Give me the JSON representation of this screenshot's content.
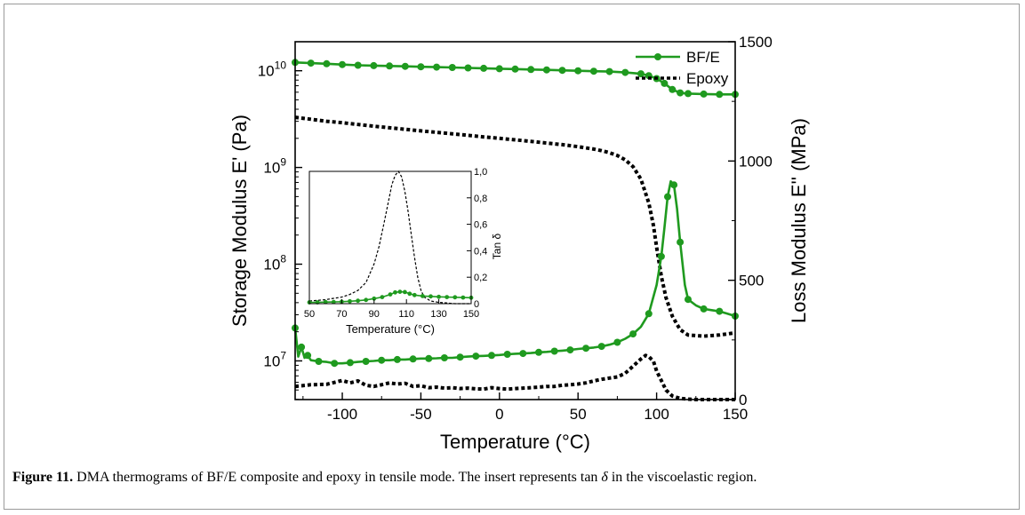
{
  "figure": {
    "caption_label": "Figure 11.",
    "caption_pre": " DMA thermograms of BF/E composite and epoxy in tensile mode. The insert represents tan ",
    "caption_symbol": "δ",
    "caption_post": " in the viscoelastic region."
  },
  "chart_data": [
    {
      "type": "line",
      "xlabel": "Temperature (°C)",
      "ylabel_left": "Storage Modulus E' (Pa)",
      "ylabel_right": "Loss Modulus E'' (MPa)",
      "xlim": [
        -130,
        150
      ],
      "xticks": [
        -100,
        -50,
        0,
        50,
        100,
        150
      ],
      "xtick_labels": [
        "-100",
        "-50",
        "0",
        "50",
        "100",
        "150"
      ],
      "ylim_left_log": [
        6.6,
        10.3
      ],
      "yticks_left_exp": [
        7,
        8,
        9,
        10
      ],
      "ytick_left_labels": [
        "10",
        "10",
        "10",
        "10"
      ],
      "ytick_left_sup": [
        "7",
        "8",
        "9",
        "10"
      ],
      "ylim_right": [
        0,
        1500
      ],
      "yticks_right": [
        0,
        500,
        1000,
        1500
      ],
      "ytick_right_labels": [
        "0",
        "500",
        "1000",
        "1500"
      ],
      "legend": {
        "position": "top-right",
        "entries": [
          "BF/E",
          "Epoxy"
        ]
      },
      "series": [
        {
          "name": "BF/E",
          "axis": "left",
          "style": "solid-markers",
          "color": "#1f9a1f",
          "x": [
            -130,
            -120,
            -110,
            -100,
            -90,
            -80,
            -70,
            -60,
            -50,
            -40,
            -30,
            -20,
            -10,
            0,
            10,
            20,
            30,
            40,
            50,
            60,
            70,
            80,
            90,
            95,
            100,
            105,
            110,
            115,
            120,
            130,
            140,
            150
          ],
          "y": [
            12200000000.0,
            12000000000.0,
            11800000000.0,
            11600000000.0,
            11400000000.0,
            11300000000.0,
            11200000000.0,
            11100000000.0,
            11000000000.0,
            10900000000.0,
            10800000000.0,
            10700000000.0,
            10600000000.0,
            10500000000.0,
            10400000000.0,
            10300000000.0,
            10200000000.0,
            10100000000.0,
            10000000000.0,
            9900000000.0,
            9800000000.0,
            9600000000.0,
            9300000000.0,
            8900000000.0,
            8300000000.0,
            7400000000.0,
            6400000000.0,
            5900000000.0,
            5800000000.0,
            5750000000.0,
            5700000000.0,
            5700000000.0
          ]
        },
        {
          "name": "Epoxy",
          "axis": "left",
          "style": "dotted",
          "color": "#000000",
          "x": [
            -130,
            -120,
            -110,
            -100,
            -90,
            -80,
            -70,
            -60,
            -50,
            -40,
            -30,
            -20,
            -10,
            0,
            10,
            20,
            30,
            40,
            50,
            60,
            65,
            70,
            75,
            80,
            85,
            90,
            95,
            98,
            100,
            103,
            106,
            110,
            115,
            120,
            130,
            140,
            150
          ],
          "y": [
            3300000000.0,
            3150000000.0,
            3000000000.0,
            2900000000.0,
            2780000000.0,
            2670000000.0,
            2570000000.0,
            2480000000.0,
            2390000000.0,
            2310000000.0,
            2230000000.0,
            2150000000.0,
            2070000000.0,
            2000000000.0,
            1930000000.0,
            1860000000.0,
            1790000000.0,
            1720000000.0,
            1640000000.0,
            1550000000.0,
            1490000000.0,
            1420000000.0,
            1330000000.0,
            1200000000.0,
            1020000000.0,
            760000000.0,
            430000000.0,
            250000000.0,
            150000000.0,
            75000000.0,
            45000000.0,
            29000000.0,
            21000000.0,
            18500000.0,
            18000000.0,
            18500000.0,
            19500000.0
          ]
        },
        {
          "name": "BF/E",
          "axis": "right",
          "style": "solid-markers",
          "color": "#1f9a1f",
          "x": [
            -130,
            -128,
            -126,
            -124,
            -122,
            -120,
            -115,
            -110,
            -105,
            -100,
            -95,
            -90,
            -85,
            -80,
            -75,
            -70,
            -65,
            -60,
            -55,
            -50,
            -45,
            -40,
            -35,
            -30,
            -25,
            -20,
            -15,
            -10,
            -5,
            0,
            5,
            10,
            15,
            20,
            25,
            30,
            35,
            40,
            45,
            50,
            55,
            60,
            65,
            70,
            75,
            80,
            85,
            90,
            95,
            100,
            103,
            105,
            107,
            109,
            111,
            113,
            115,
            118,
            120,
            125,
            130,
            135,
            140,
            145,
            150
          ],
          "y": [
            300,
            180,
            220,
            175,
            185,
            165,
            160,
            158,
            152,
            152,
            155,
            158,
            160,
            162,
            165,
            165,
            168,
            168,
            170,
            172,
            172,
            173,
            175,
            175,
            178,
            180,
            182,
            183,
            185,
            187,
            190,
            192,
            193,
            195,
            198,
            200,
            203,
            205,
            208,
            212,
            215,
            218,
            223,
            230,
            240,
            255,
            275,
            305,
            360,
            480,
            600,
            720,
            850,
            915,
            900,
            800,
            660,
            480,
            420,
            395,
            380,
            375,
            370,
            360,
            350
          ]
        },
        {
          "name": "Epoxy",
          "axis": "right",
          "style": "dotted",
          "color": "#000000",
          "x": [
            -130,
            -120,
            -110,
            -100,
            -95,
            -90,
            -85,
            -80,
            -75,
            -70,
            -65,
            -60,
            -55,
            -50,
            -45,
            -40,
            -35,
            -30,
            -25,
            -20,
            -15,
            -10,
            -5,
            0,
            5,
            10,
            15,
            20,
            25,
            30,
            35,
            40,
            45,
            50,
            55,
            60,
            65,
            70,
            75,
            80,
            85,
            90,
            93,
            95,
            98,
            100,
            103,
            106,
            110,
            115,
            120,
            125,
            130,
            140,
            150
          ],
          "y": [
            55,
            62,
            64,
            80,
            70,
            78,
            60,
            55,
            62,
            70,
            65,
            68,
            55,
            58,
            50,
            52,
            48,
            50,
            46,
            48,
            45,
            44,
            50,
            46,
            44,
            46,
            48,
            50,
            52,
            55,
            55,
            60,
            62,
            65,
            70,
            78,
            85,
            90,
            95,
            110,
            140,
            170,
            185,
            180,
            160,
            120,
            80,
            40,
            15,
            5,
            2,
            0,
            0,
            0,
            0
          ]
        }
      ]
    },
    {
      "type": "line",
      "role": "inset",
      "xlabel": "Temperature (°C)",
      "ylabel": "Tan δ",
      "xlim": [
        50,
        150
      ],
      "xticks": [
        50,
        70,
        90,
        110,
        130,
        150
      ],
      "xtick_labels": [
        "50",
        "70",
        "90",
        "110",
        "130",
        "150"
      ],
      "ylim": [
        0,
        1.0
      ],
      "yticks": [
        0,
        0.2,
        0.4,
        0.6,
        0.8,
        1.0
      ],
      "ytick_labels": [
        "0",
        "0,2",
        "0,4",
        "0,6",
        "0,8",
        "1,0"
      ],
      "series": [
        {
          "name": "Epoxy",
          "style": "dashed",
          "color": "#000000",
          "x": [
            50,
            55,
            60,
            65,
            70,
            75,
            80,
            85,
            90,
            93,
            96,
            99,
            101,
            103,
            105,
            107,
            109,
            111,
            113,
            115,
            117,
            119,
            121,
            125,
            130,
            140,
            150
          ],
          "y": [
            0.02,
            0.025,
            0.03,
            0.04,
            0.05,
            0.07,
            0.1,
            0.16,
            0.3,
            0.43,
            0.6,
            0.78,
            0.9,
            0.97,
            1.0,
            0.96,
            0.85,
            0.7,
            0.52,
            0.35,
            0.2,
            0.1,
            0.05,
            0.02,
            0.01,
            0.0,
            0.0
          ]
        },
        {
          "name": "BF/E",
          "style": "solid-markers",
          "color": "#1f9a1f",
          "x": [
            50,
            55,
            60,
            65,
            70,
            75,
            80,
            85,
            90,
            95,
            100,
            103,
            106,
            109,
            112,
            115,
            120,
            125,
            130,
            135,
            140,
            145,
            150
          ],
          "y": [
            0.01,
            0.01,
            0.012,
            0.013,
            0.015,
            0.018,
            0.022,
            0.028,
            0.038,
            0.05,
            0.07,
            0.085,
            0.09,
            0.088,
            0.075,
            0.065,
            0.058,
            0.055,
            0.052,
            0.05,
            0.048,
            0.046,
            0.045
          ]
        }
      ]
    }
  ]
}
